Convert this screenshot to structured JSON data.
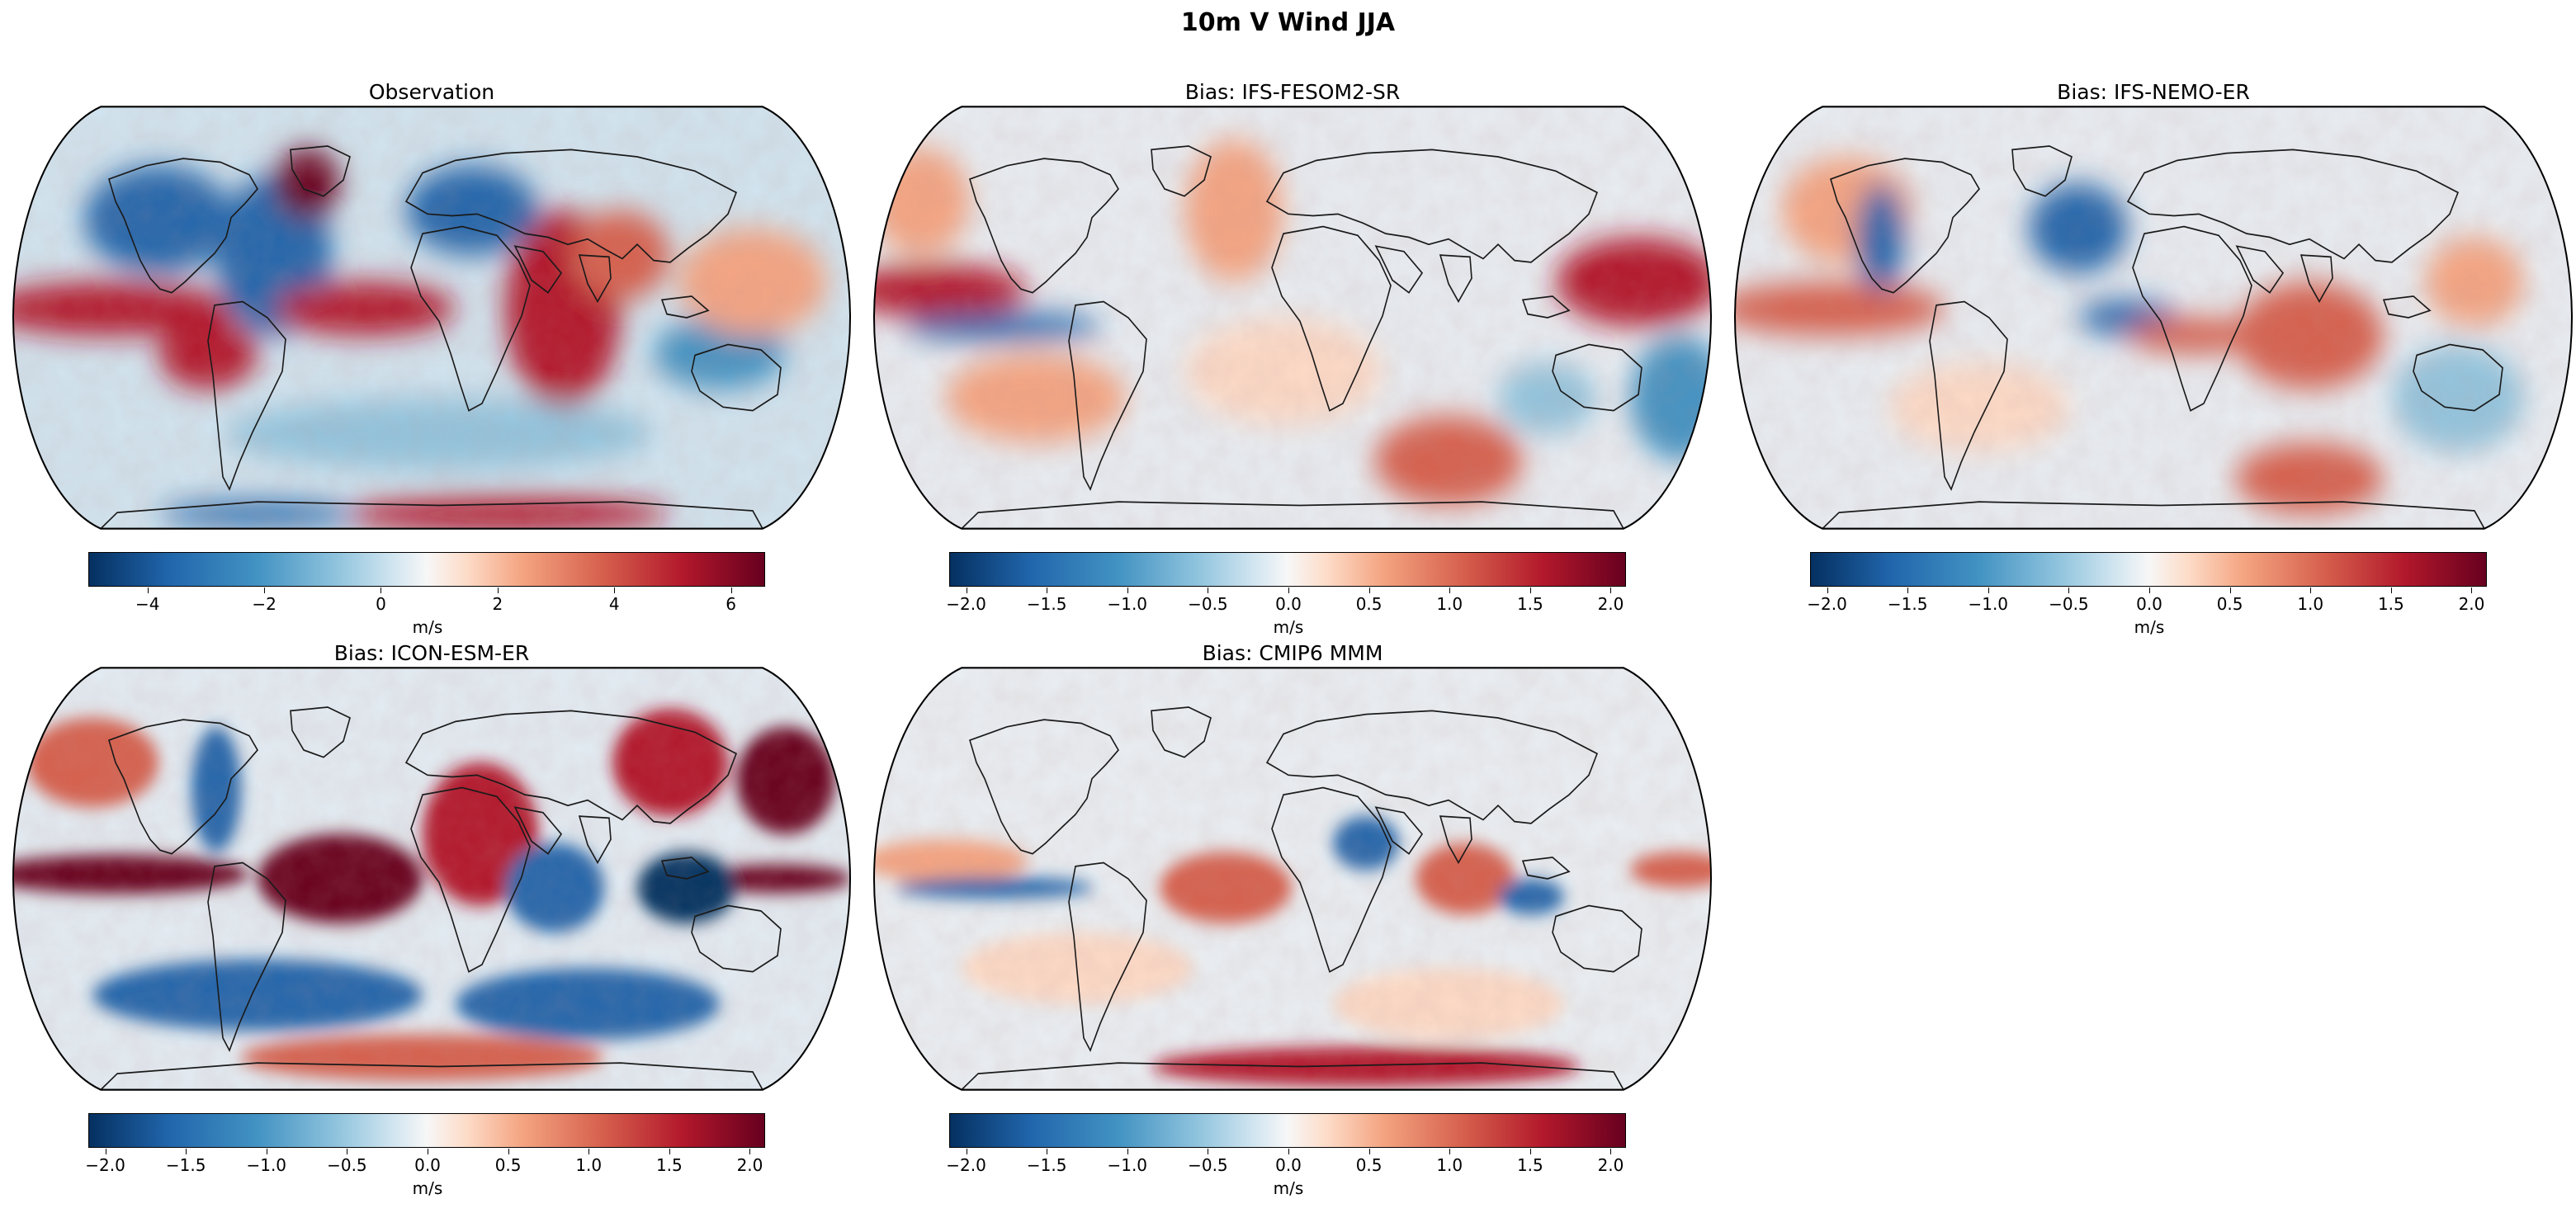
{
  "figure": {
    "title": "10m V Wind JJA"
  },
  "colors": {
    "deep_blue": "#053061",
    "blue": "#2166ac",
    "light_blue": "#92c5de",
    "white": "#f7f7f7",
    "light_red": "#f4a582",
    "red": "#d6604d",
    "deep_red": "#67001f",
    "land_line": "#1a1a1a"
  },
  "panels": [
    {
      "title": "Observation",
      "colorbar": {
        "unit": "m/s",
        "range": [
          -5.0,
          6.6
        ],
        "ticks": [
          "−4",
          "−2",
          "0",
          "2",
          "4",
          "6"
        ],
        "tick_values": [
          -4,
          -2,
          0,
          2,
          4,
          6
        ]
      }
    },
    {
      "title": "Bias: IFS-FESOM2-SR",
      "colorbar": {
        "unit": "m/s",
        "range": [
          -2.1,
          2.1
        ],
        "ticks": [
          "−2.0",
          "−1.5",
          "−1.0",
          "−0.5",
          "0.0",
          "0.5",
          "1.0",
          "1.5",
          "2.0"
        ],
        "tick_values": [
          -2.0,
          -1.5,
          -1.0,
          -0.5,
          0.0,
          0.5,
          1.0,
          1.5,
          2.0
        ]
      }
    },
    {
      "title": "Bias: IFS-NEMO-ER",
      "colorbar": {
        "unit": "m/s",
        "range": [
          -2.1,
          2.1
        ],
        "ticks": [
          "−2.0",
          "−1.5",
          "−1.0",
          "−0.5",
          "0.0",
          "0.5",
          "1.0",
          "1.5",
          "2.0"
        ],
        "tick_values": [
          -2.0,
          -1.5,
          -1.0,
          -0.5,
          0.0,
          0.5,
          1.0,
          1.5,
          2.0
        ]
      }
    },
    {
      "title": "Bias: ICON-ESM-ER",
      "colorbar": {
        "unit": "m/s",
        "range": [
          -2.1,
          2.1
        ],
        "ticks": [
          "−2.0",
          "−1.5",
          "−1.0",
          "−0.5",
          "0.0",
          "0.5",
          "1.0",
          "1.5",
          "2.0"
        ],
        "tick_values": [
          -2.0,
          -1.5,
          -1.0,
          -0.5,
          0.0,
          0.5,
          1.0,
          1.5,
          2.0
        ]
      }
    },
    {
      "title": "Bias: CMIP6 MMM",
      "colorbar": {
        "unit": "m/s",
        "range": [
          -2.1,
          2.1
        ],
        "ticks": [
          "−2.0",
          "−1.5",
          "−1.0",
          "−0.5",
          "0.0",
          "0.5",
          "1.0",
          "1.5",
          "2.0"
        ],
        "tick_values": [
          -2.0,
          -1.5,
          -1.0,
          -0.5,
          0.0,
          0.5,
          1.0,
          1.5,
          2.0
        ]
      }
    }
  ]
}
